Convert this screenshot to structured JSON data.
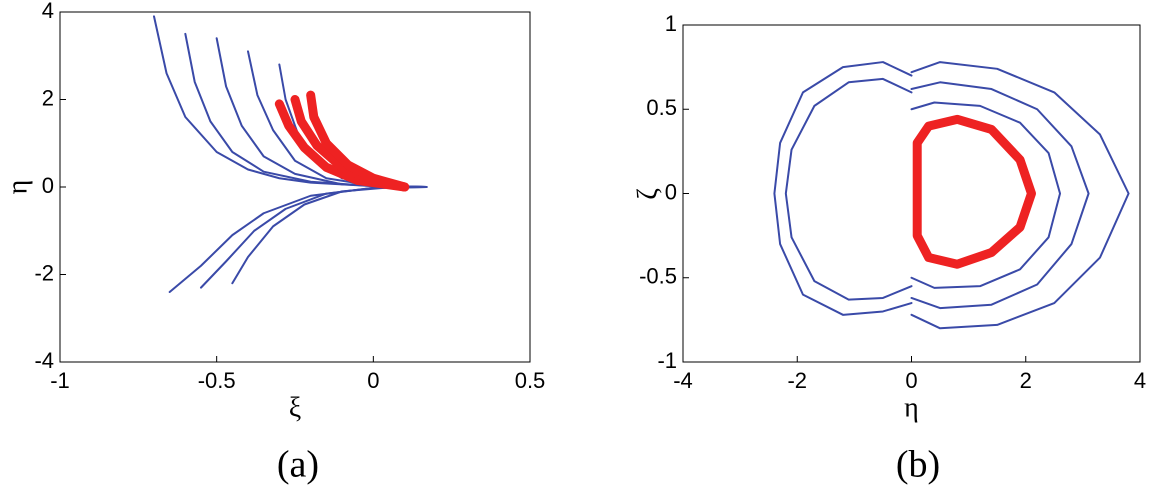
{
  "chart_data": [
    {
      "type": "line",
      "caption": "(a)",
      "x_label": "ξ",
      "y_label": "η",
      "xlim": [
        -1,
        0.5
      ],
      "ylim": [
        -4,
        4
      ],
      "xticks": [
        -1,
        -0.5,
        0,
        0.5
      ],
      "yticks": [
        -4,
        -2,
        0,
        2,
        4
      ],
      "series": [
        {
          "color": "#3a4aa8",
          "x": [
            -0.7,
            -0.66,
            -0.6,
            -0.5,
            -0.4,
            -0.3,
            -0.2,
            0,
            0.17
          ],
          "values": [
            3.9,
            2.6,
            1.6,
            0.8,
            0.4,
            0.2,
            0.1,
            0.02,
            0
          ]
        },
        {
          "color": "#3a4aa8",
          "x": [
            -0.6,
            -0.57,
            -0.52,
            -0.45,
            -0.35,
            -0.2,
            0,
            0.17
          ],
          "values": [
            3.5,
            2.4,
            1.5,
            0.8,
            0.35,
            0.12,
            0.02,
            0
          ]
        },
        {
          "color": "#3a4aa8",
          "x": [
            -0.5,
            -0.47,
            -0.42,
            -0.35,
            -0.25,
            -0.1,
            0.17
          ],
          "values": [
            3.4,
            2.3,
            1.4,
            0.7,
            0.3,
            0.06,
            0
          ]
        },
        {
          "color": "#3a4aa8",
          "x": [
            -0.4,
            -0.37,
            -0.32,
            -0.25,
            -0.15,
            0,
            0.17
          ],
          "values": [
            3.1,
            2.1,
            1.3,
            0.6,
            0.2,
            0.03,
            0
          ]
        },
        {
          "color": "#3a4aa8",
          "x": [
            -0.3,
            -0.28,
            -0.24,
            -0.18,
            -0.1,
            0.05,
            0.17
          ],
          "values": [
            2.8,
            2.0,
            1.2,
            0.6,
            0.2,
            0.02,
            0
          ]
        },
        {
          "color": "#3a4aa8",
          "x": [
            -0.65,
            -0.55,
            -0.45,
            -0.35,
            -0.2,
            0,
            0.17
          ],
          "values": [
            -2.4,
            -1.8,
            -1.1,
            -0.6,
            -0.2,
            -0.02,
            0
          ]
        },
        {
          "color": "#3a4aa8",
          "x": [
            -0.55,
            -0.47,
            -0.38,
            -0.28,
            -0.15,
            0,
            0.17
          ],
          "values": [
            -2.3,
            -1.7,
            -1.0,
            -0.5,
            -0.15,
            -0.02,
            0
          ]
        },
        {
          "color": "#3a4aa8",
          "x": [
            -0.45,
            -0.4,
            -0.32,
            -0.22,
            -0.1,
            0.05,
            0.17
          ],
          "values": [
            -2.2,
            -1.6,
            -0.9,
            -0.4,
            -0.1,
            -0.01,
            0
          ]
        },
        {
          "color": "#ee2222",
          "x": [
            -0.3,
            -0.27,
            -0.22,
            -0.15,
            -0.05,
            0.1
          ],
          "values": [
            1.9,
            1.4,
            0.9,
            0.45,
            0.15,
            0
          ]
        },
        {
          "color": "#ee2222",
          "x": [
            -0.25,
            -0.23,
            -0.18,
            -0.1,
            0,
            0.1
          ],
          "values": [
            2.0,
            1.5,
            0.95,
            0.45,
            0.15,
            0
          ]
        },
        {
          "color": "#ee2222",
          "x": [
            -0.2,
            -0.19,
            -0.15,
            -0.08,
            0,
            0.1
          ],
          "values": [
            2.1,
            1.6,
            1.0,
            0.5,
            0.2,
            0
          ]
        }
      ]
    },
    {
      "type": "line",
      "caption": "(b)",
      "x_label": "η",
      "y_label": "ζ",
      "xlim": [
        -4,
        4
      ],
      "ylim": [
        -1,
        1
      ],
      "xticks": [
        -4,
        -2,
        0,
        2,
        4
      ],
      "yticks": [
        -1,
        -0.5,
        0,
        0.5,
        1
      ],
      "series": [
        {
          "color": "#3a4aa8",
          "x": [
            0,
            -0.5,
            -1.2,
            -1.9,
            -2.3,
            -2.4,
            -2.3,
            -1.9,
            -1.2,
            -0.5,
            0
          ],
          "values": [
            0.7,
            0.78,
            0.75,
            0.6,
            0.3,
            0,
            -0.3,
            -0.6,
            -0.72,
            -0.7,
            -0.65
          ]
        },
        {
          "color": "#3a4aa8",
          "x": [
            0,
            -0.5,
            -1.1,
            -1.7,
            -2.1,
            -2.2,
            -2.1,
            -1.7,
            -1.1,
            -0.5,
            0
          ],
          "values": [
            0.6,
            0.68,
            0.66,
            0.52,
            0.26,
            0,
            -0.26,
            -0.52,
            -0.63,
            -0.62,
            -0.55
          ]
        },
        {
          "color": "#3a4aa8",
          "x": [
            0,
            0.5,
            1.5,
            2.5,
            3.3,
            3.8,
            3.3,
            2.5,
            1.5,
            0.5,
            0
          ],
          "values": [
            0.72,
            0.78,
            0.74,
            0.6,
            0.35,
            0,
            -0.38,
            -0.65,
            -0.78,
            -0.8,
            -0.72
          ]
        },
        {
          "color": "#3a4aa8",
          "x": [
            0,
            0.5,
            1.4,
            2.2,
            2.8,
            3.1,
            2.8,
            2.2,
            1.4,
            0.5,
            0
          ],
          "values": [
            0.62,
            0.66,
            0.62,
            0.5,
            0.28,
            0,
            -0.3,
            -0.54,
            -0.66,
            -0.68,
            -0.62
          ]
        },
        {
          "color": "#3a4aa8",
          "x": [
            0,
            0.4,
            1.2,
            1.9,
            2.4,
            2.6,
            2.4,
            1.9,
            1.2,
            0.4,
            0
          ],
          "values": [
            0.5,
            0.54,
            0.52,
            0.42,
            0.24,
            0,
            -0.26,
            -0.45,
            -0.55,
            -0.56,
            -0.5
          ]
        },
        {
          "color": "#ee2222",
          "x": [
            0.1,
            0.3,
            0.8,
            1.4,
            1.9,
            2.1,
            1.9,
            1.4,
            0.8,
            0.3,
            0.1,
            0.1
          ],
          "values": [
            0.3,
            0.4,
            0.44,
            0.38,
            0.2,
            0,
            -0.2,
            -0.35,
            -0.42,
            -0.38,
            -0.25,
            0.3
          ]
        }
      ]
    }
  ]
}
